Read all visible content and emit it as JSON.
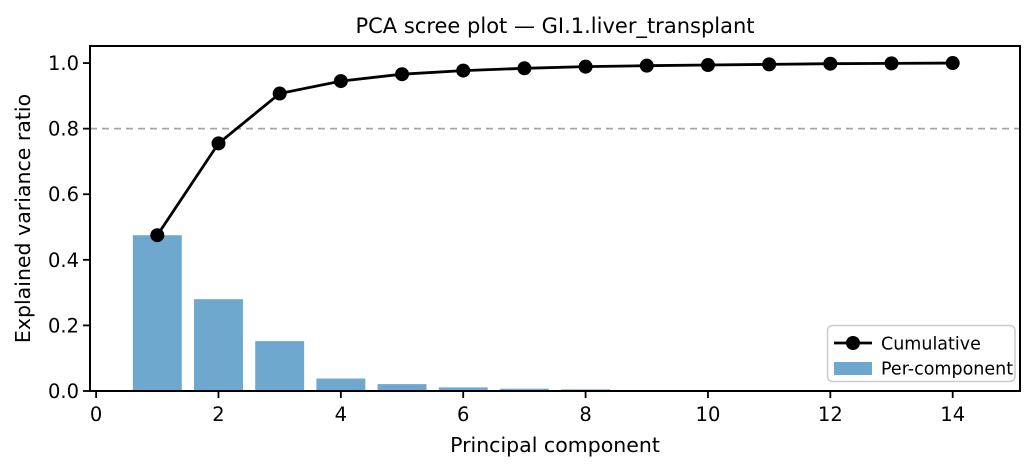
{
  "chart_data": {
    "type": "bar+line",
    "title": "PCA scree plot — GI.1.liver_transplant",
    "xlabel": "Principal component",
    "ylabel": "Explained variance ratio",
    "x": [
      1,
      2,
      3,
      4,
      5,
      6,
      7,
      8,
      9,
      10,
      11,
      12,
      13,
      14
    ],
    "series": [
      {
        "name": "Cumulative",
        "type": "line",
        "color": "#000000",
        "marker": "circle",
        "values": [
          0.475,
          0.755,
          0.907,
          0.945,
          0.966,
          0.977,
          0.984,
          0.989,
          0.992,
          0.994,
          0.996,
          0.998,
          0.999,
          1.0
        ]
      },
      {
        "name": "Per-component",
        "type": "bar",
        "color": "#6fa8cf",
        "values": [
          0.475,
          0.28,
          0.152,
          0.038,
          0.021,
          0.011,
          0.007,
          0.005,
          0.003,
          0.002,
          0.002,
          0.002,
          0.001,
          0.001
        ]
      }
    ],
    "threshold": {
      "y": 0.8,
      "color": "#a6a6a6",
      "style": "dashed"
    },
    "xticks": [
      0,
      2,
      4,
      6,
      8,
      10,
      12,
      14
    ],
    "yticks": [
      0.0,
      0.2,
      0.4,
      0.6,
      0.8,
      1.0
    ],
    "xlim": [
      -0.1,
      15.1
    ],
    "ylim": [
      0,
      1.052
    ],
    "grid": false,
    "legend": {
      "position": "lower-right",
      "entries": [
        "Cumulative",
        "Per-component"
      ]
    }
  }
}
